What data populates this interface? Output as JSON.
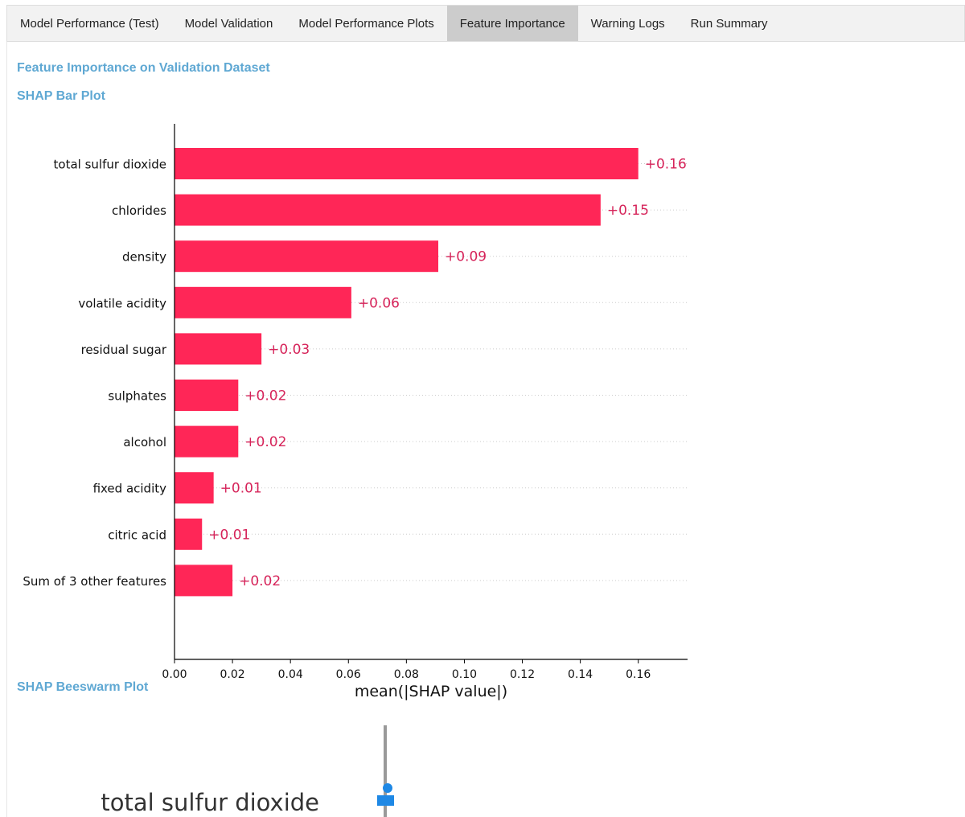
{
  "tabs": [
    {
      "label": "Model Performance (Test)",
      "active": false
    },
    {
      "label": "Model Validation",
      "active": false
    },
    {
      "label": "Model Performance Plots",
      "active": false
    },
    {
      "label": "Feature Importance",
      "active": true
    },
    {
      "label": "Warning Logs",
      "active": false
    },
    {
      "label": "Run Summary",
      "active": false
    }
  ],
  "section_title": "Feature Importance on Validation Dataset",
  "bar_plot_title": "SHAP Bar Plot",
  "beeswarm_title": "SHAP Beeswarm Plot",
  "beeswarm_partial": {
    "first_feature_label": "total sulfur dioxide"
  },
  "colors": {
    "bar": "#ff2657",
    "value_label": "#d6245a",
    "heading": "#5fa8d3",
    "beeswarm_point": "#1e88e5"
  },
  "chart_data": {
    "type": "bar",
    "orientation": "horizontal",
    "categories": [
      "total sulfur dioxide",
      "chlorides",
      "density",
      "volatile acidity",
      "residual sugar",
      "sulphates",
      "alcohol",
      "fixed acidity",
      "citric acid",
      "Sum of 3 other features"
    ],
    "values": [
      0.16,
      0.147,
      0.091,
      0.061,
      0.03,
      0.022,
      0.022,
      0.0135,
      0.0095,
      0.02
    ],
    "value_labels": [
      "+0.16",
      "+0.15",
      "+0.09",
      "+0.06",
      "+0.03",
      "+0.02",
      "+0.02",
      "+0.01",
      "+0.01",
      "+0.02"
    ],
    "x_ticks": [
      "0.00",
      "0.02",
      "0.04",
      "0.06",
      "0.08",
      "0.10",
      "0.12",
      "0.14",
      "0.16"
    ],
    "xlabel": "mean(|SHAP value|)",
    "xlim": [
      0,
      0.177
    ],
    "grid": "dotted row guides"
  }
}
